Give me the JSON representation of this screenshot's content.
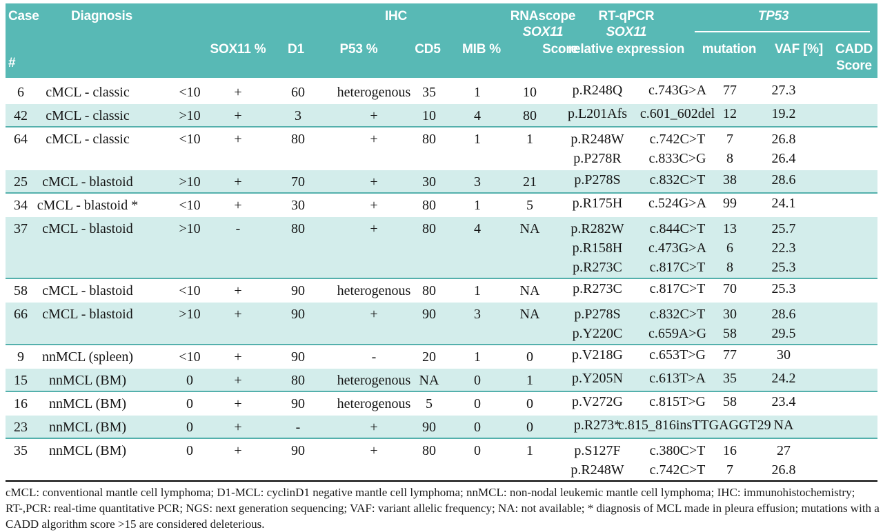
{
  "colors": {
    "header_teal": "#58b9b5",
    "row_teal": "#d3edeb",
    "separator_teal": "#54b0ac",
    "header_text": "#ffffff",
    "body_text": "#151515"
  },
  "header": {
    "case_line1": "Case",
    "case_line2": "#",
    "diagnosis": "Diagnosis",
    "ihc_group": "IHC",
    "sox11": "SOX11 %",
    "d1": "D1",
    "p53": "P53 %",
    "cd5": "CD5",
    "mib": "MIB %",
    "rnascope_line1": "RNAscope",
    "rnascope_line2": "SOX11",
    "rnascope_line3": "Score",
    "rtqpcr_line1": "RT-qPCR",
    "rtqpcr_line2": "SOX11",
    "rtqpcr_line3": "relative expression",
    "tp53_group": "TP53",
    "mutation": "mutation",
    "vaf": "VAF [%]",
    "cadd_line1": "CADD",
    "cadd_line2": "Score"
  },
  "rows": [
    {
      "case": "6",
      "diagnosis": "cMCL - classic",
      "sox11": "<10",
      "d1": "+",
      "p53": "60",
      "cd5": "heterogenous",
      "mib": "35",
      "score": "1",
      "rel": "10",
      "mutp": [
        "p.R248Q"
      ],
      "mutc": [
        "c.743G>A"
      ],
      "vaf": [
        "77"
      ],
      "cadd": [
        "27.3"
      ],
      "shaded": false,
      "lines": 1
    },
    {
      "case": "42",
      "diagnosis": "cMCL - classic",
      "sox11": ">10",
      "d1": "+",
      "p53": "3",
      "cd5": "+",
      "mib": "10",
      "score": "4",
      "rel": "80",
      "mutp": [
        "p.L201Afs"
      ],
      "mutc": [
        "c.601_602del"
      ],
      "vaf": [
        "12"
      ],
      "cadd": [
        "19.2"
      ],
      "shaded": true,
      "lines": 1
    },
    {
      "case": "64",
      "diagnosis": "cMCL - classic",
      "sox11": "<10",
      "d1": "+",
      "p53": "80",
      "cd5": "+",
      "mib": "80",
      "score": "1",
      "rel": "1",
      "mutp": [
        "p.R248W",
        "p.P278R"
      ],
      "mutc": [
        "c.742C>T",
        "c.833C>G"
      ],
      "vaf": [
        "7",
        "8"
      ],
      "cadd": [
        "26.8",
        "26.4"
      ],
      "shaded": false,
      "lines": 2
    },
    {
      "case": "25",
      "diagnosis": "cMCL - blastoid",
      "sox11": ">10",
      "d1": "+",
      "p53": "70",
      "cd5": "+",
      "mib": "30",
      "score": "3",
      "rel": "21",
      "mutp": [
        "p.P278S"
      ],
      "mutc": [
        "c.832C>T"
      ],
      "vaf": [
        "38"
      ],
      "cadd": [
        "28.6"
      ],
      "shaded": true,
      "lines": 1
    },
    {
      "case": "34",
      "diagnosis": "cMCL - blastoid *",
      "sox11": "<10",
      "d1": "+",
      "p53": "30",
      "cd5": "+",
      "mib": "80",
      "score": "1",
      "rel": "5",
      "mutp": [
        "p.R175H"
      ],
      "mutc": [
        "c.524G>A"
      ],
      "vaf": [
        "99"
      ],
      "cadd": [
        "24.1"
      ],
      "shaded": false,
      "lines": 1
    },
    {
      "case": "37",
      "diagnosis": "cMCL - blastoid",
      "sox11": ">10",
      "d1": "-",
      "p53": "80",
      "cd5": "+",
      "mib": "80",
      "score": "4",
      "rel": "NA",
      "mutp": [
        "p.R282W",
        "p.R158H",
        "p.R273C"
      ],
      "mutc": [
        "c.844C>T",
        "c.473G>A",
        "c.817C>T"
      ],
      "vaf": [
        "13",
        "6",
        "8"
      ],
      "cadd": [
        "25.7",
        "22.3",
        "25.3"
      ],
      "shaded": true,
      "lines": 3
    },
    {
      "case": "58",
      "diagnosis": "cMCL - blastoid",
      "sox11": "<10",
      "d1": "+",
      "p53": "90",
      "cd5": "heterogenous",
      "mib": "80",
      "score": "1",
      "rel": "NA",
      "mutp": [
        "p.R273C"
      ],
      "mutc": [
        "c.817C>T"
      ],
      "vaf": [
        "70"
      ],
      "cadd": [
        "25.3"
      ],
      "shaded": false,
      "lines": 1
    },
    {
      "case": "66",
      "diagnosis": "cMCL - blastoid",
      "sox11": ">10",
      "d1": "+",
      "p53": "90",
      "cd5": "+",
      "mib": "90",
      "score": "3",
      "rel": "NA",
      "mutp": [
        "p.P278S",
        "p.Y220C"
      ],
      "mutc": [
        "c.832C>T",
        "c.659A>G"
      ],
      "vaf": [
        "30",
        "58"
      ],
      "cadd": [
        "28.6",
        "29.5"
      ],
      "shaded": true,
      "lines": 2
    },
    {
      "case": "9",
      "diagnosis": "nnMCL (spleen)",
      "sox11": "<10",
      "d1": "+",
      "p53": "90",
      "cd5": "-",
      "mib": "20",
      "score": "1",
      "rel": "0",
      "mutp": [
        "p.V218G"
      ],
      "mutc": [
        "c.653T>G"
      ],
      "vaf": [
        "77"
      ],
      "cadd": [
        "30"
      ],
      "shaded": false,
      "lines": 1
    },
    {
      "case": "15",
      "diagnosis": "nnMCL (BM)",
      "sox11": "0",
      "d1": "+",
      "p53": "80",
      "cd5": "heterogenous",
      "mib": "NA",
      "score": "0",
      "rel": "1",
      "mutp": [
        "p.Y205N"
      ],
      "mutc": [
        "c.613T>A"
      ],
      "vaf": [
        "35"
      ],
      "cadd": [
        "24.2"
      ],
      "shaded": true,
      "lines": 1
    },
    {
      "case": "16",
      "diagnosis": "nnMCL (BM)",
      "sox11": "0",
      "d1": "+",
      "p53": "90",
      "cd5": "heterogenous",
      "mib": "5",
      "score": "0",
      "rel": "0",
      "mutp": [
        "p.V272G"
      ],
      "mutc": [
        "c.815T>G"
      ],
      "vaf": [
        "58"
      ],
      "cadd": [
        "23.4"
      ],
      "shaded": false,
      "lines": 1
    },
    {
      "case": "23",
      "diagnosis": "nnMCL (BM)",
      "sox11": "0",
      "d1": "+",
      "p53": "-",
      "cd5": "+",
      "mib": "90",
      "score": "0",
      "rel": "0",
      "mutp": [
        "p.R273*"
      ],
      "mutc": [
        "c.815_816insTTGAGGT29"
      ],
      "vaf": [
        ""
      ],
      "cadd": [
        "NA"
      ],
      "shaded": true,
      "lines": 1
    },
    {
      "case": "35",
      "diagnosis": "nnMCL (BM)",
      "sox11": "0",
      "d1": "+",
      "p53": "90",
      "cd5": "+",
      "mib": "80",
      "score": "0",
      "rel": "1",
      "mutp": [
        "p.S127F",
        "p.R248W"
      ],
      "mutc": [
        "c.380C>T",
        "c.742C>T"
      ],
      "vaf": [
        "16",
        "7"
      ],
      "cadd": [
        "27",
        "26.8"
      ],
      "shaded": false,
      "lines": 2
    }
  ],
  "footnote": "cMCL: conventional mantle cell lymphoma; D1-MCL: cyclinD1 negative mantle cell lymphoma; nnMCL: non-nodal leukemic mantle cell lymphoma; IHC: immunohistochemistry; RT-,PCR: real-time quantitative PCR; NGS: next generation sequencing; VAF: variant allelic frequency; NA: not available; * diagnosis of MCL made in pleura effusion; mutations with a CADD algorithm score >15 are considered deleterious."
}
